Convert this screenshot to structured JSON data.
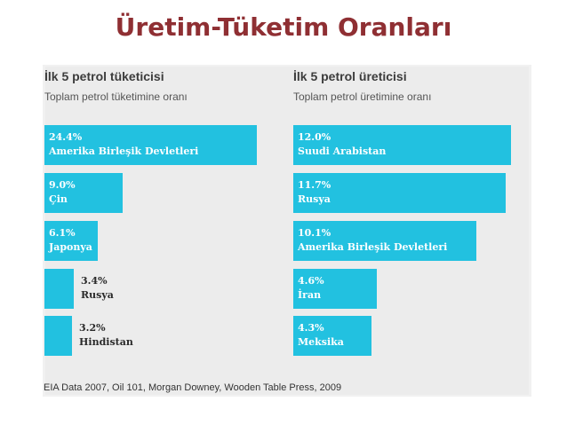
{
  "slide": {
    "title": "Üretim-Tüketim Oranları"
  },
  "accent_color": "#22c1e0",
  "title_color": "#8f2f33",
  "source": "EIA Data 2007, Oil 101, Morgan Downey, Wooden Table Press, 2009",
  "chart_data": [
    {
      "type": "bar",
      "orientation": "horizontal",
      "title": "İlk 5 petrol tüketicisi",
      "subtitle": "Toplam petrol tüketimine oranı",
      "categories": [
        "Amerika Birleşik Devletleri",
        "Çin",
        "Japonya",
        "Rusya",
        "Hindistan"
      ],
      "labels": [
        "24.4%",
        "9.0%",
        "6.1%",
        "3.4%",
        "3.2%"
      ],
      "values": [
        24.4,
        9.0,
        6.1,
        3.4,
        3.2
      ],
      "unit": "%",
      "xlim": [
        0,
        25
      ]
    },
    {
      "type": "bar",
      "orientation": "horizontal",
      "title": "İlk 5 petrol üreticisi",
      "subtitle": "Toplam petrol üretimine oranı",
      "categories": [
        "Suudi Arabistan",
        "Rusya",
        "Amerika Birleşik Devletleri",
        "İran",
        "Meksika"
      ],
      "labels": [
        "12.0%",
        "11.7%",
        "10.1%",
        "4.6%",
        "4.3%"
      ],
      "values": [
        12.0,
        11.7,
        10.1,
        4.6,
        4.3
      ],
      "unit": "%",
      "xlim": [
        0,
        12.3
      ]
    }
  ]
}
